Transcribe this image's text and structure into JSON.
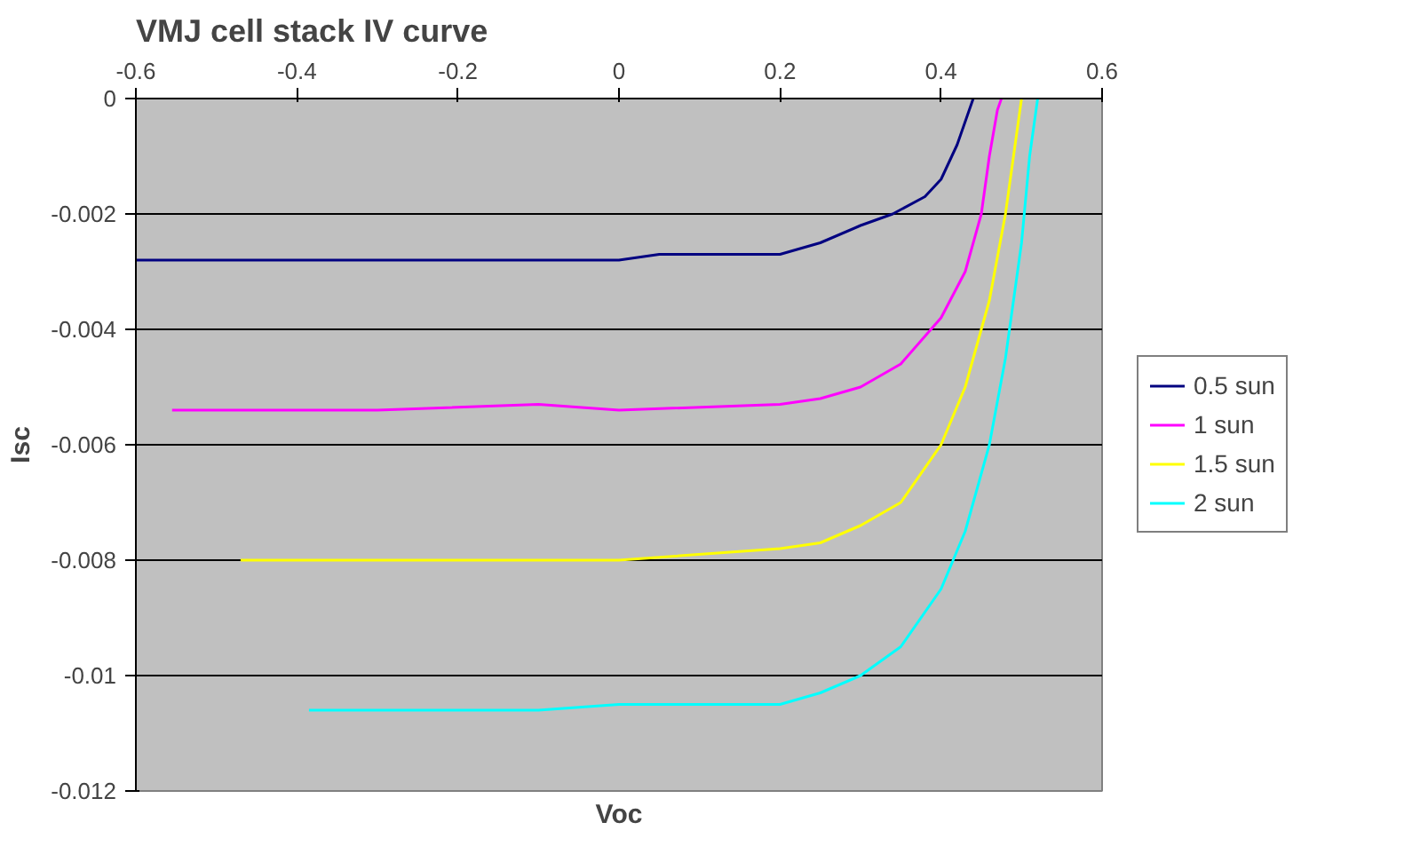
{
  "chart_data": {
    "type": "line",
    "title": "VMJ cell stack IV curve",
    "xlabel": "Voc",
    "ylabel": "Isc",
    "xlim": [
      -0.6,
      0.6
    ],
    "xticks": [
      -0.6,
      -0.4,
      -0.2,
      0,
      0.2,
      0.4,
      0.6
    ],
    "ylim": [
      -0.012,
      0
    ],
    "yticks": [
      -0.012,
      -0.01,
      -0.008,
      -0.006,
      -0.004,
      -0.002,
      0
    ],
    "grid": "y",
    "legend": "right",
    "marker": "none",
    "line_style": "solid",
    "series": [
      {
        "name": "0.5 sun",
        "color": "#000080",
        "x": [
          -0.6,
          -0.3,
          0.0,
          0.05,
          0.2,
          0.25,
          0.3,
          0.34,
          0.38,
          0.4,
          0.42,
          0.44
        ],
        "values": [
          -0.0028,
          -0.0028,
          -0.0028,
          -0.0027,
          -0.0027,
          -0.0025,
          -0.0022,
          -0.002,
          -0.0017,
          -0.0014,
          -0.0008,
          0
        ]
      },
      {
        "name": "1 sun",
        "color": "#ff00ff",
        "x": [
          -0.555,
          -0.3,
          -0.1,
          0.0,
          0.2,
          0.25,
          0.3,
          0.35,
          0.4,
          0.43,
          0.45,
          0.46,
          0.47,
          0.475
        ],
        "values": [
          -0.0054,
          -0.0054,
          -0.0053,
          -0.0054,
          -0.0053,
          -0.0052,
          -0.005,
          -0.0046,
          -0.0038,
          -0.003,
          -0.002,
          -0.001,
          -0.0002,
          0
        ]
      },
      {
        "name": "1.5 sun",
        "color": "#ffff00",
        "x": [
          -0.47,
          -0.2,
          0.0,
          0.2,
          0.25,
          0.3,
          0.35,
          0.4,
          0.43,
          0.46,
          0.48,
          0.49,
          0.5
        ],
        "values": [
          -0.008,
          -0.008,
          -0.008,
          -0.0078,
          -0.0077,
          -0.0074,
          -0.007,
          -0.006,
          -0.005,
          -0.0035,
          -0.002,
          -0.001,
          0
        ]
      },
      {
        "name": "2 sun",
        "color": "#00ffff",
        "x": [
          -0.385,
          -0.1,
          0.0,
          0.2,
          0.25,
          0.3,
          0.35,
          0.4,
          0.43,
          0.46,
          0.48,
          0.5,
          0.51,
          0.52
        ],
        "values": [
          -0.0106,
          -0.0106,
          -0.0105,
          -0.0105,
          -0.0103,
          -0.01,
          -0.0095,
          -0.0085,
          -0.0075,
          -0.006,
          -0.0045,
          -0.0025,
          -0.001,
          0
        ]
      }
    ]
  }
}
